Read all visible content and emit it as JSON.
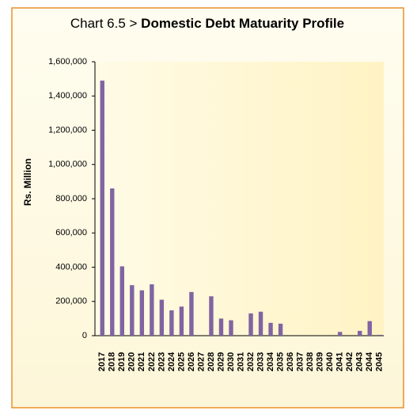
{
  "chart_data": {
    "type": "bar",
    "title_prefix": "Chart 6.5 >",
    "title": "Domestic Debt Matuarity Profile",
    "y_label": "Rs. Million",
    "categories": [
      "2017",
      "2018",
      "2019",
      "2020",
      "2021",
      "2022",
      "2023",
      "2024",
      "2025",
      "2026",
      "2027",
      "2028",
      "2029",
      "2030",
      "2031",
      "2032",
      "2033",
      "2034",
      "2035",
      "2036",
      "2037",
      "2038",
      "2039",
      "2040",
      "2041",
      "2042",
      "2043",
      "2044",
      "2045"
    ],
    "values": [
      1490000,
      860000,
      405000,
      295000,
      265000,
      300000,
      210000,
      148000,
      170000,
      255000,
      0,
      230000,
      100000,
      90000,
      0,
      130000,
      140000,
      75000,
      70000,
      0,
      0,
      0,
      0,
      0,
      22000,
      0,
      28000,
      85000,
      5000
    ],
    "color": "#8064a2",
    "ylim": [
      0,
      1600000
    ],
    "yticks": [
      {
        "value": 0,
        "label": "0"
      },
      {
        "value": 200000,
        "label": "200,000"
      },
      {
        "value": 400000,
        "label": "400,000"
      },
      {
        "value": 600000,
        "label": "600,000"
      },
      {
        "value": 800000,
        "label": "800,000"
      },
      {
        "value": 1000000,
        "label": "1,000,000"
      },
      {
        "value": 1200000,
        "label": "1,200,000"
      },
      {
        "value": 1400000,
        "label": "1,400,000"
      },
      {
        "value": 1600000,
        "label": "1,600,000"
      }
    ],
    "grid": false
  }
}
